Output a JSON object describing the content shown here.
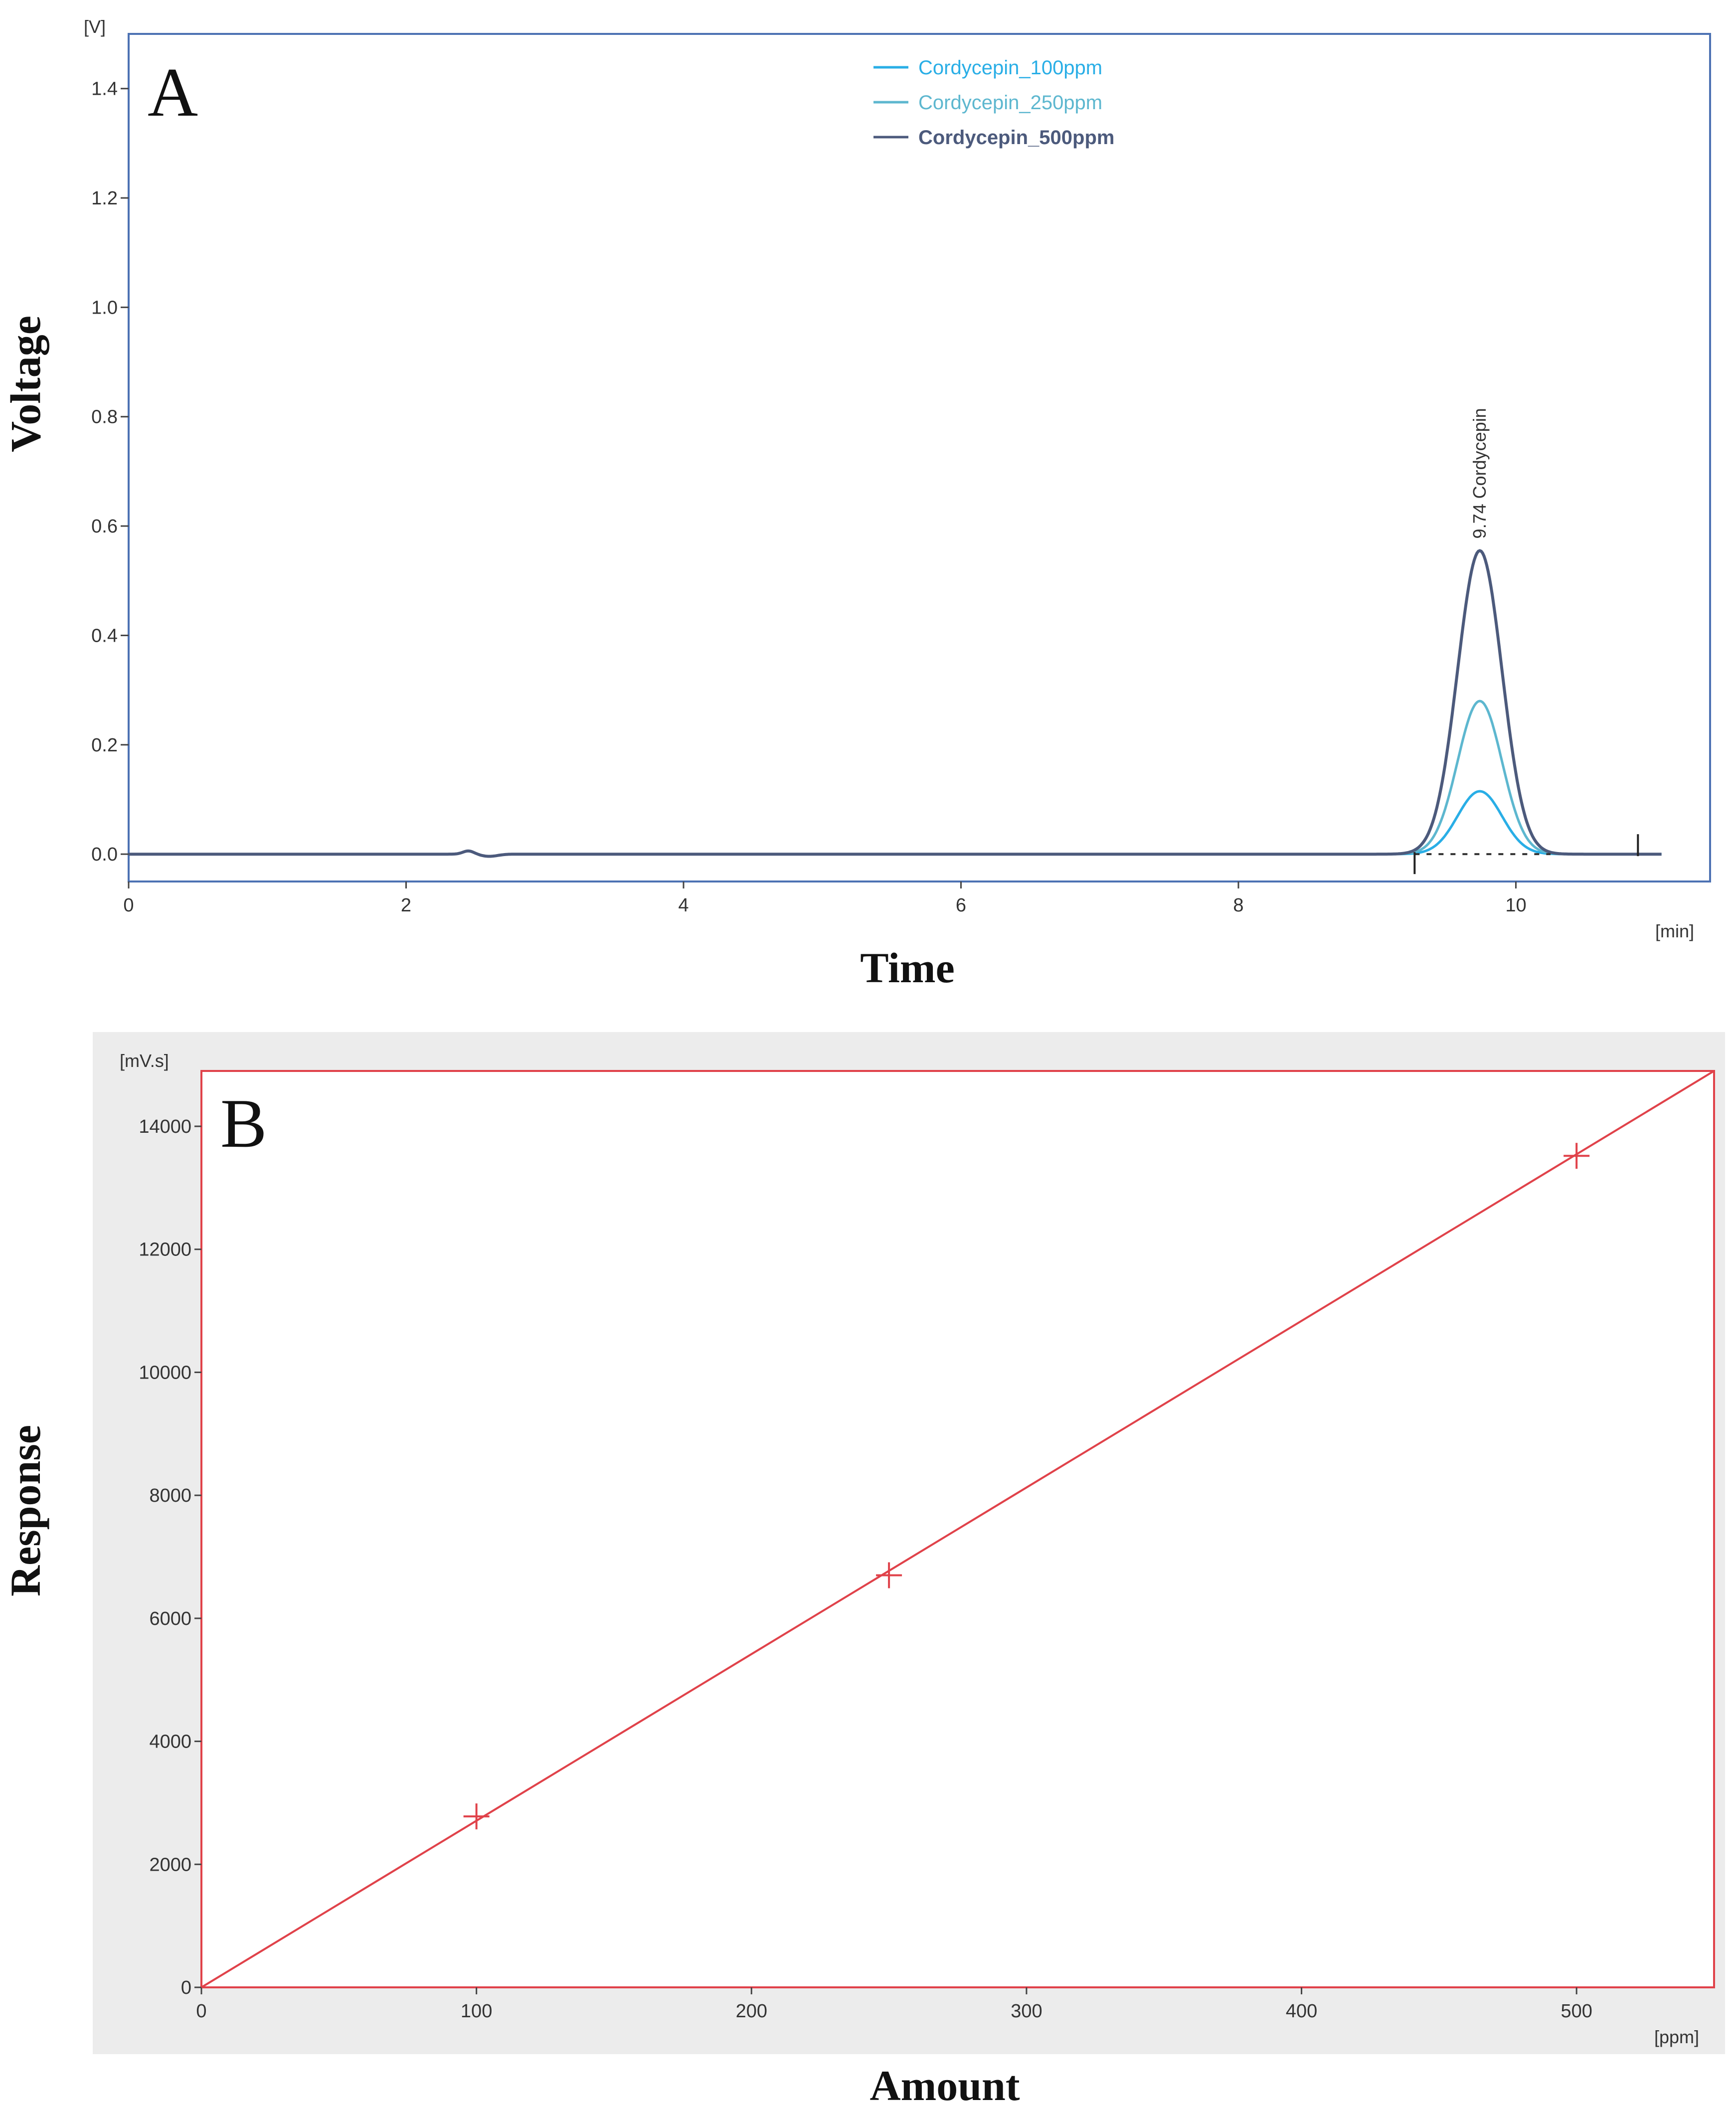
{
  "chart_data": [
    {
      "panel": "A",
      "type": "line",
      "title": "",
      "xlabel": "Time",
      "ylabel": "Voltage",
      "x_unit": "[min]",
      "y_unit": "[V]",
      "xlim": [
        0,
        11.4
      ],
      "ylim": [
        -0.05,
        1.5
      ],
      "x_ticks": [
        "0",
        "2",
        "4",
        "6",
        "8",
        "10"
      ],
      "y_ticks": [
        "0.0",
        "0.2",
        "0.4",
        "0.6",
        "0.8",
        "1.0",
        "1.2",
        "1.4"
      ],
      "legend_position": "top-center",
      "peak_label": "9.74 Cordycepin",
      "peak": {
        "time": 9.74,
        "sigma": 0.16
      },
      "integration_markers": [
        9.27,
        10.88
      ],
      "baseline_bump": {
        "time": 2.45,
        "height": 0.006
      },
      "series": [
        {
          "name": "Cordycepin_100ppm",
          "color": "#29aee6",
          "peak_height": 0.115
        },
        {
          "name": "Cordycepin_250ppm",
          "color": "#5db7cf",
          "peak_height": 0.28
        },
        {
          "name": "Cordycepin_500ppm",
          "color": "#4c5a7c",
          "peak_height": 0.555
        }
      ],
      "colors": {
        "frame": "#4d72b3",
        "trace_end": 11.05
      }
    },
    {
      "panel": "B",
      "type": "scatter",
      "title": "",
      "xlabel": "Amount",
      "ylabel": "Response",
      "x_unit": "[ppm]",
      "y_unit": "[mV.s]",
      "xlim": [
        0,
        550
      ],
      "ylim": [
        0,
        14900
      ],
      "x_ticks": [
        "0",
        "100",
        "200",
        "300",
        "400",
        "500"
      ],
      "y_ticks": [
        "0",
        "2000",
        "4000",
        "6000",
        "8000",
        "10000",
        "12000",
        "14000"
      ],
      "points": [
        {
          "x": 100,
          "y": 2780
        },
        {
          "x": 250,
          "y": 6700
        },
        {
          "x": 500,
          "y": 13520
        }
      ],
      "fit_line": {
        "x": [
          0,
          550
        ],
        "y": [
          0,
          14900
        ]
      },
      "colors": {
        "line": "#e0424a",
        "frame": "#e0424a",
        "panel_bg": "#ececec"
      }
    }
  ]
}
